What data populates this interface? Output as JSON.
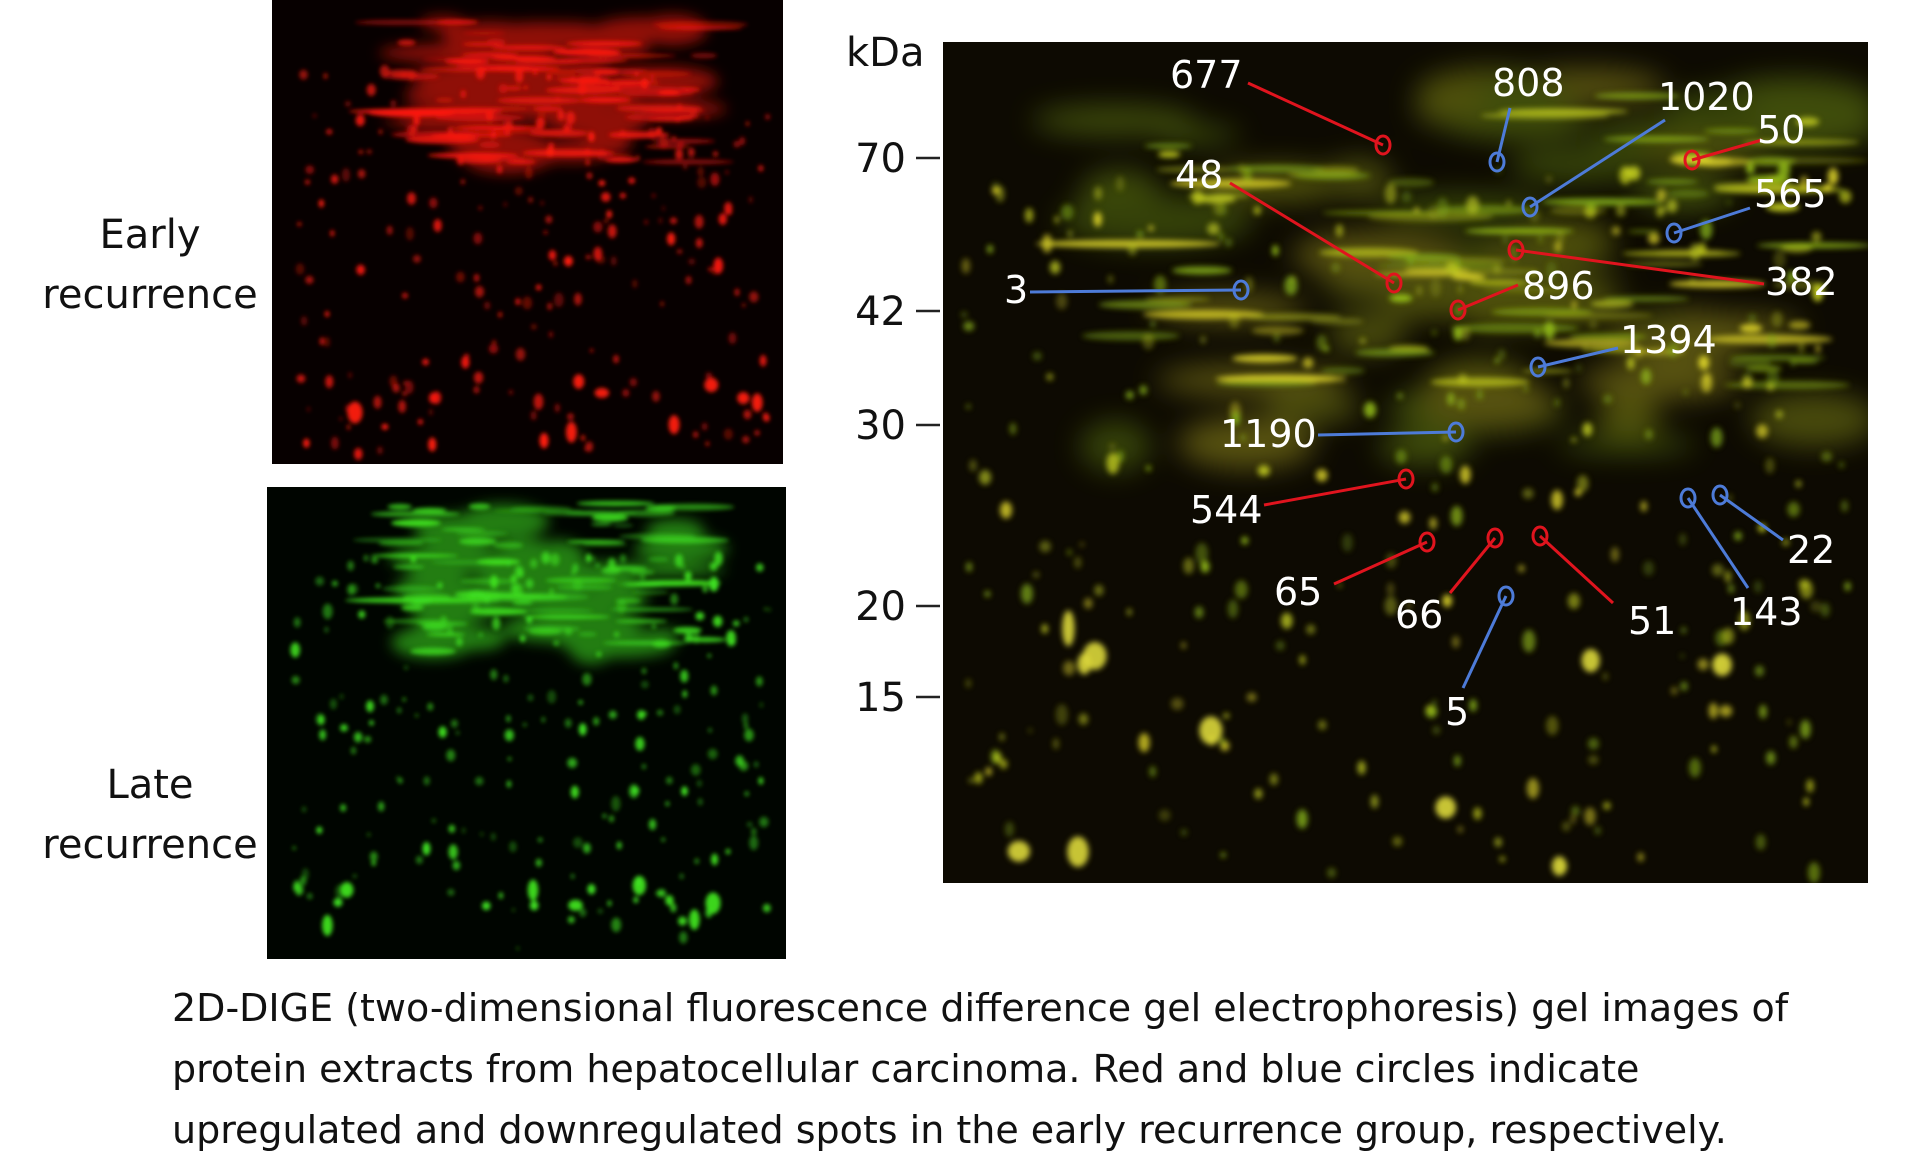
{
  "panels": {
    "early_label": "Early\nrecurrence",
    "late_label": "Late\nrecurrence"
  },
  "axis": {
    "unit": "kDa",
    "ticks": [
      "70",
      "42",
      "30",
      "20",
      "15"
    ]
  },
  "colors": {
    "up": "#e0141e",
    "down": "#4d7bd8",
    "early_channel": "#ff1a10",
    "late_channel": "#3fe020"
  },
  "spots": [
    {
      "id": "677",
      "reg": "up"
    },
    {
      "id": "808",
      "reg": "down"
    },
    {
      "id": "1020",
      "reg": "down"
    },
    {
      "id": "50",
      "reg": "up"
    },
    {
      "id": "565",
      "reg": "down"
    },
    {
      "id": "48",
      "reg": "up"
    },
    {
      "id": "382",
      "reg": "up"
    },
    {
      "id": "896",
      "reg": "up"
    },
    {
      "id": "3",
      "reg": "down"
    },
    {
      "id": "1394",
      "reg": "down"
    },
    {
      "id": "1190",
      "reg": "down"
    },
    {
      "id": "544",
      "reg": "up"
    },
    {
      "id": "65",
      "reg": "up"
    },
    {
      "id": "66",
      "reg": "up"
    },
    {
      "id": "51",
      "reg": "up"
    },
    {
      "id": "22",
      "reg": "down"
    },
    {
      "id": "143",
      "reg": "down"
    },
    {
      "id": "5",
      "reg": "down"
    }
  ],
  "caption": "2D-DIGE (two-dimensional fluorescence difference gel electrophoresis) gel images of protein extracts from hepatocellular carcinoma. Red and blue circles indicate upregulated and downregulated spots in the early recurrence group, respectively."
}
